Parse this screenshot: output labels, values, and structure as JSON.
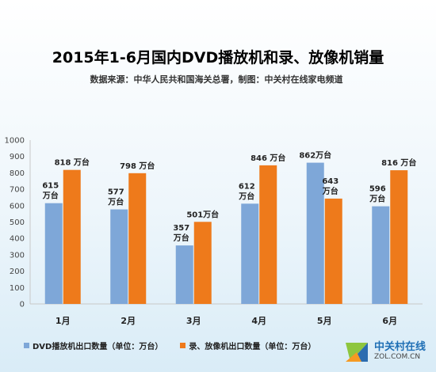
{
  "chart_data": {
    "type": "bar",
    "title": "2015年1-6月国内DVD播放机和录、放像机销量",
    "subtitle": "数据来源：中华人民共和国海关总署，制图：中关村在线家电频道",
    "categories": [
      "1月",
      "2月",
      "3月",
      "4月",
      "5月",
      "6月"
    ],
    "series": [
      {
        "name": "DVD播放机出口数量（单位：万台）",
        "color": "#7ea7d8",
        "values": [
          615,
          577,
          357,
          612,
          862,
          596
        ],
        "labels": [
          [
            "615",
            "万台"
          ],
          [
            "577",
            "万台"
          ],
          [
            "357",
            "万台"
          ],
          [
            "612",
            "万台"
          ],
          [
            "862万台"
          ],
          [
            "596",
            "万台"
          ]
        ]
      },
      {
        "name": "录、放像机出口数量（单位：万台）",
        "color": "#ee7a1b",
        "values": [
          818,
          798,
          501,
          846,
          643,
          816
        ],
        "labels": [
          [
            "818 万台"
          ],
          [
            "798 万台"
          ],
          [
            "501万台"
          ],
          [
            "846 万台"
          ],
          [
            "643",
            "万台"
          ],
          [
            "816 万台"
          ]
        ]
      }
    ],
    "ylim": [
      0,
      1000
    ],
    "yticks": [
      0,
      100,
      200,
      300,
      400,
      500,
      600,
      700,
      800,
      900,
      1000
    ],
    "grid": false,
    "legend_position": "bottom-left"
  },
  "watermark": {
    "name": "中关村在线",
    "url": "ZOL.COM.CN",
    "logo": "zol-logo-icon"
  }
}
